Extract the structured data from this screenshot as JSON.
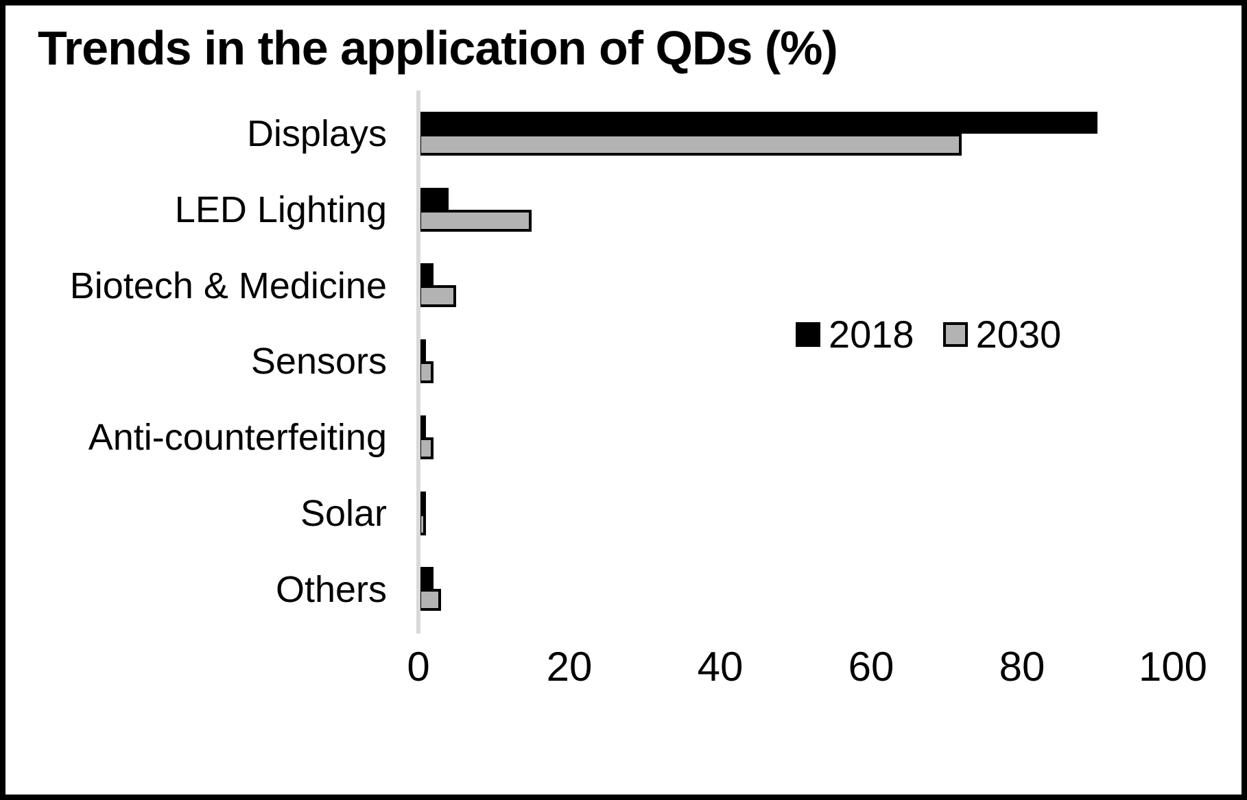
{
  "chart_data": {
    "type": "bar",
    "orientation": "horizontal",
    "title": "Trends in the application of QDs (%)",
    "categories": [
      "Displays",
      "LED Lighting",
      "Biotech & Medicine",
      "Sensors",
      "Anti-counterfeiting",
      "Solar",
      "Others"
    ],
    "series": [
      {
        "name": "2018",
        "color": "#000000",
        "values": [
          90,
          4,
          2,
          1,
          1,
          1,
          2
        ]
      },
      {
        "name": "2030",
        "color": "#b3b3b3",
        "values": [
          72,
          15,
          5,
          2,
          2,
          1,
          3
        ]
      }
    ],
    "xlim": [
      0,
      100
    ],
    "x_ticks": [
      0,
      20,
      40,
      60,
      80,
      100
    ],
    "legend_position": "middle-right",
    "grid": false
  },
  "colors": {
    "background": "#ffffff",
    "frame_border": "#000000",
    "axis_line": "#d9d9d9",
    "bar_2018": "#000000",
    "bar_2030": "#b3b3b3",
    "bar_2030_border": "#000000",
    "text": "#000000"
  }
}
